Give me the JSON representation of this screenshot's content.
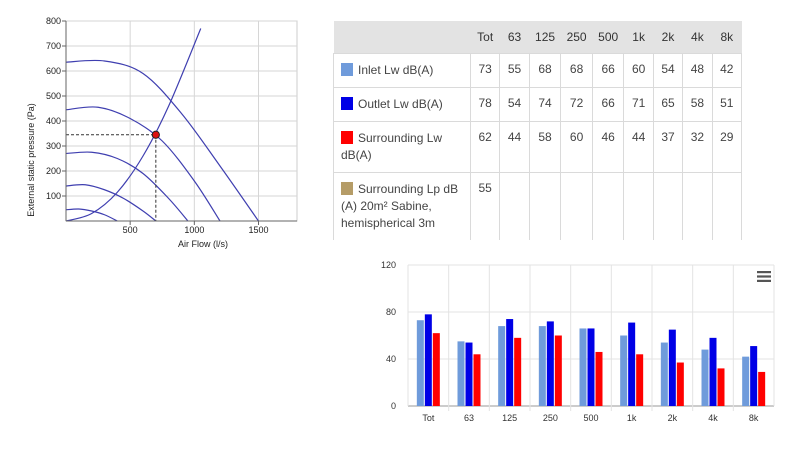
{
  "chart_data": [
    {
      "type": "line",
      "xlabel": "Air Flow (l/s)",
      "ylabel": "External static pressure (Pa)",
      "xlim": [
        0,
        1800
      ],
      "ylim": [
        0,
        800
      ],
      "x_ticks": [
        "500",
        "1000",
        "1500"
      ],
      "y_ticks": [
        "100",
        "200",
        "300",
        "400",
        "500",
        "600",
        "700",
        "800"
      ],
      "grid": true,
      "fan_curves": [
        {
          "x": [
            0,
            300,
            600,
            900,
            1200,
            1500
          ],
          "y": [
            635,
            640,
            590,
            430,
            220,
            0
          ]
        },
        {
          "x": [
            0,
            250,
            500,
            750,
            1000,
            1200
          ],
          "y": [
            445,
            455,
            410,
            320,
            160,
            0
          ]
        },
        {
          "x": [
            0,
            200,
            400,
            600,
            800,
            950
          ],
          "y": [
            270,
            275,
            250,
            190,
            90,
            0
          ]
        },
        {
          "x": [
            0,
            150,
            300,
            450,
            600,
            700
          ],
          "y": [
            140,
            145,
            125,
            90,
            40,
            0
          ]
        },
        {
          "x": [
            0,
            100,
            200,
            300,
            400
          ],
          "y": [
            45,
            48,
            40,
            25,
            0
          ]
        }
      ],
      "system_curve": {
        "x": [
          0,
          200,
          400,
          600,
          800,
          1050
        ],
        "y": [
          0,
          30,
          115,
          260,
          460,
          770
        ]
      },
      "operating_point": {
        "x": 700,
        "y": 345
      }
    },
    {
      "type": "bar",
      "categories": [
        "Tot",
        "63",
        "125",
        "250",
        "500",
        "1k",
        "2k",
        "4k",
        "8k"
      ],
      "series": [
        {
          "name": "Inlet Lw dB(A)",
          "color": "#6f9bdb",
          "values": [
            73,
            55,
            68,
            68,
            66,
            60,
            54,
            48,
            42
          ]
        },
        {
          "name": "Outlet Lw dB(A)",
          "color": "#0000e6",
          "values": [
            78,
            54,
            74,
            72,
            66,
            71,
            65,
            58,
            51
          ]
        },
        {
          "name": "Surrounding Lw dB(A)",
          "color": "#ff0000",
          "values": [
            62,
            44,
            58,
            60,
            46,
            44,
            37,
            32,
            29
          ]
        }
      ],
      "y_ticks": [
        "0",
        "40",
        "80",
        "120"
      ],
      "ylim": [
        0,
        120
      ],
      "grid": true
    }
  ],
  "table": {
    "headers": [
      "",
      "Tot",
      "63",
      "125",
      "250",
      "500",
      "1k",
      "2k",
      "4k",
      "8k"
    ],
    "rows": [
      {
        "label": "Inlet Lw dB(A)",
        "color": "#6f9bdb",
        "values": [
          "73",
          "55",
          "68",
          "68",
          "66",
          "60",
          "54",
          "48",
          "42"
        ]
      },
      {
        "label": "Outlet Lw dB(A)",
        "color": "#0000e6",
        "values": [
          "78",
          "54",
          "74",
          "72",
          "66",
          "71",
          "65",
          "58",
          "51"
        ]
      },
      {
        "label": "Surrounding Lw dB(A)",
        "color": "#ff0000",
        "values": [
          "62",
          "44",
          "58",
          "60",
          "46",
          "44",
          "37",
          "32",
          "29"
        ]
      },
      {
        "label": "Surrounding Lp dB (A) 20m² Sabine, hemispherical 3m",
        "color": "#b59c67",
        "values": [
          "55",
          "",
          "",
          "",
          "",
          "",
          "",
          "",
          ""
        ]
      }
    ]
  },
  "menu_icon": "hamburger-menu-icon"
}
